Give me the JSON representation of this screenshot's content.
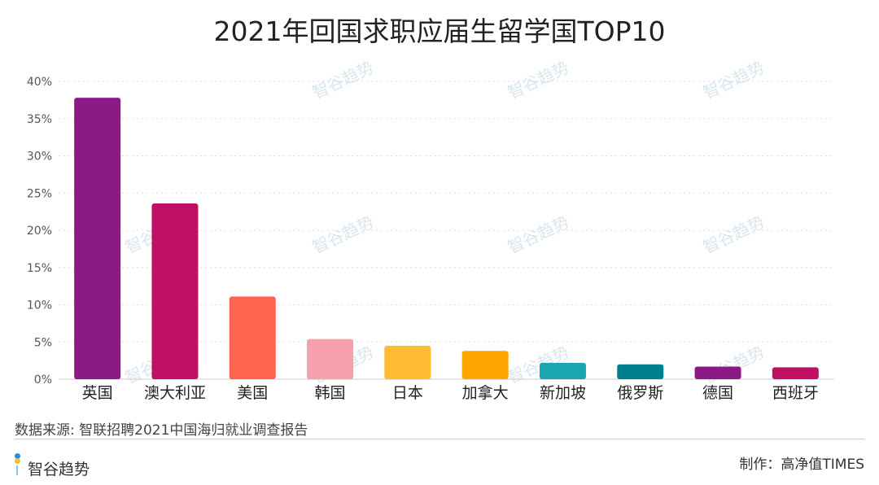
{
  "title": "2021年回国求职应届生留学国TOP10",
  "source": "数据来源: 智联招聘2021中国海归就业调查报告",
  "logo": "智谷趋势",
  "credit": "制作：高净值TIMES",
  "chart_data": {
    "type": "bar",
    "title": "2021年回国求职应届生留学国TOP10",
    "xlabel": "",
    "ylabel": "",
    "ylim": [
      0,
      40
    ],
    "yticks": [
      0,
      5,
      10,
      15,
      20,
      25,
      30,
      35,
      40
    ],
    "ytick_labels": [
      "0%",
      "5%",
      "10%",
      "15%",
      "20%",
      "25%",
      "30%",
      "35%",
      "40%"
    ],
    "grid": true,
    "categories": [
      "英国",
      "澳大利亚",
      "美国",
      "韩国",
      "日本",
      "加拿大",
      "新加坡",
      "俄罗斯",
      "德国",
      "西班牙"
    ],
    "values": [
      37.8,
      23.6,
      11.1,
      5.4,
      4.5,
      3.8,
      2.2,
      2.0,
      1.7,
      1.6
    ],
    "colors": [
      "#8b1a86",
      "#c01064",
      "#ff6450",
      "#f5a0aa",
      "#ffbb33",
      "#ffa500",
      "#1aa6b0",
      "#00808c",
      "#8b1a86",
      "#c01064"
    ]
  }
}
